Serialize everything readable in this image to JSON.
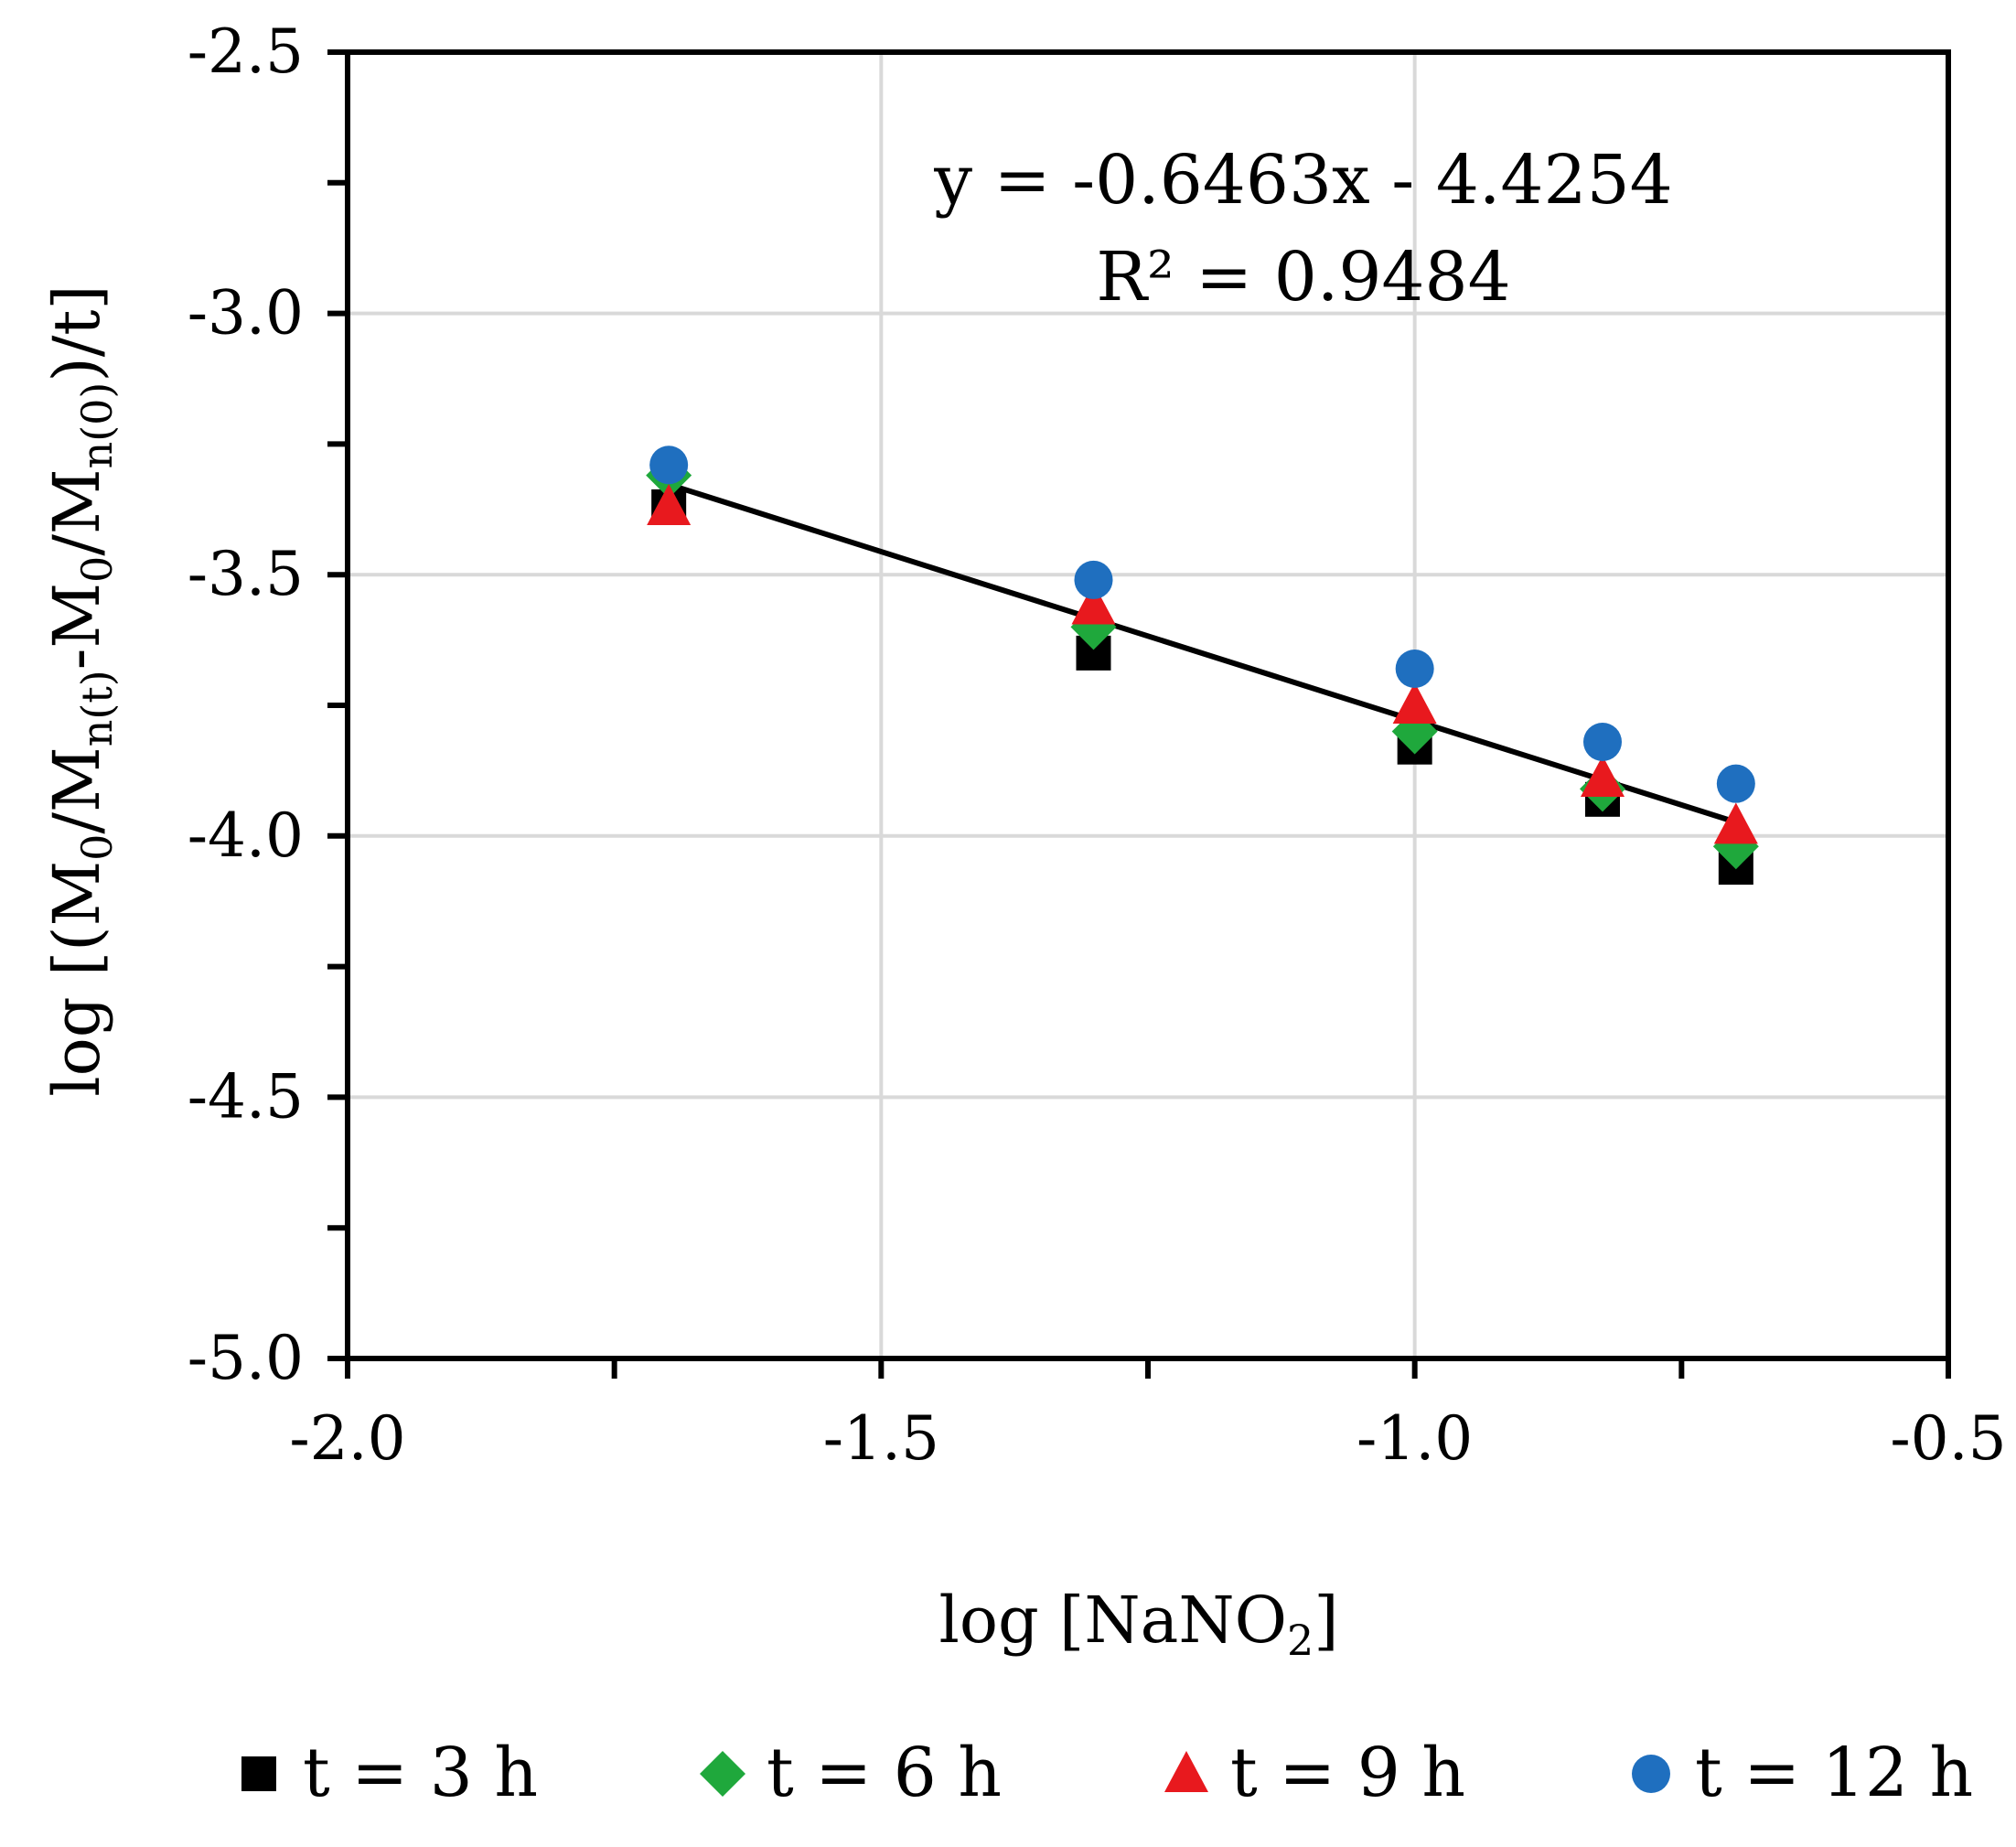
{
  "chart_data": {
    "type": "scatter",
    "xlabel": "log [NaNO",
    "xlabel_sub": "2",
    "xlabel_end": "]",
    "ylabel_parts": [
      {
        "t": "log [(M",
        "s": false
      },
      {
        "t": "0",
        "s": true
      },
      {
        "t": "/M",
        "s": false
      },
      {
        "t": "n(t)",
        "s": true
      },
      {
        "t": "-M",
        "s": false
      },
      {
        "t": "0",
        "s": true
      },
      {
        "t": "/M",
        "s": false
      },
      {
        "t": "n(0)",
        "s": true
      },
      {
        "t": ")/t]",
        "s": false
      }
    ],
    "xlim": [
      -2.0,
      -0.5
    ],
    "ylim": [
      -5.0,
      -2.5
    ],
    "x_ticks": [
      -2.0,
      -1.5,
      -1.0,
      -0.5
    ],
    "x_tick_labels": [
      "-2.0",
      "-1.5",
      "-1.0",
      "-0.5"
    ],
    "y_ticks": [
      -2.5,
      -3.0,
      -3.5,
      -4.0,
      -4.5,
      -5.0
    ],
    "y_tick_labels": [
      "-2.5",
      "-3.0",
      "-3.5",
      "-4.0",
      "-4.5",
      "-5.0"
    ],
    "x_minor_ticks": [
      -1.75,
      -1.25,
      -0.75
    ],
    "y_minor_ticks": [
      -2.75,
      -3.25,
      -3.75,
      -4.25,
      -4.75
    ],
    "grid": true,
    "legend_position": "bottom",
    "x": [
      -1.699,
      -1.301,
      -1.0,
      -0.824,
      -0.699
    ],
    "series": [
      {
        "name": "t = 3 h",
        "marker": "square",
        "color": "#000000",
        "values": [
          -3.37,
          -3.65,
          -3.83,
          -3.93,
          -4.06
        ]
      },
      {
        "name": "t = 6 h",
        "marker": "diamond",
        "color": "#1fa83c",
        "values": [
          -3.31,
          -3.6,
          -3.8,
          -3.91,
          -4.02
        ]
      },
      {
        "name": "t = 9 h",
        "marker": "triangle",
        "color": "#e8191e",
        "values": [
          -3.37,
          -3.56,
          -3.75,
          -3.89,
          -3.98
        ]
      },
      {
        "name": "t = 12 h",
        "marker": "circle",
        "color": "#1f6fbf",
        "values": [
          -3.29,
          -3.51,
          -3.68,
          -3.82,
          -3.9
        ]
      }
    ],
    "trendline": {
      "slope": -0.6463,
      "intercept": -4.4254,
      "x_range": [
        -1.699,
        -0.699
      ],
      "color": "#000000",
      "equation": "y = -0.6463x - 4.4254",
      "r2_label": "R² = 0.9484"
    }
  }
}
